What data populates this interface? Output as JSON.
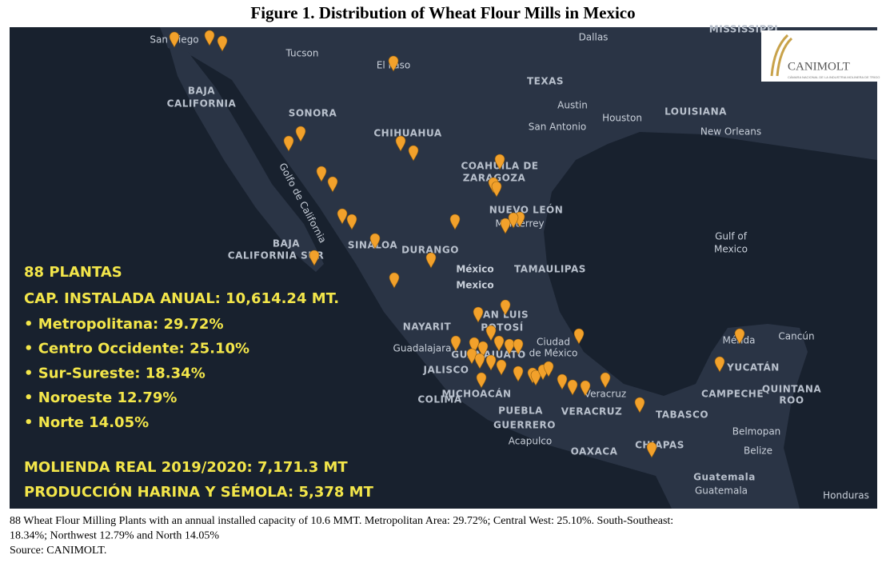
{
  "title": "Figure 1. Distribution of Wheat Flour Mills in Mexico",
  "logo": {
    "name": "CANIMOLT",
    "subtitle": "CÁMARA NACIONAL DE LA INDUSTRIA MOLINERA DE TRIGO"
  },
  "map": {
    "labels": [
      "San Diego",
      "Tucson",
      "El Paso",
      "Dallas",
      "MISSISSIPPI",
      "TEXAS",
      "Austin",
      "Houston",
      "LOUISIANA",
      "San Antonio",
      "New Orleans",
      "BAJA",
      "CALIFORNIA",
      "SONORA",
      "CHIHUAHUA",
      "COAHUILA DE",
      "ZARAGOZA",
      "NUEVO LEÓN",
      "Monterrey",
      "Gulf of",
      "Mexico",
      "BAJA",
      "CALIFORNIA SUR",
      "SINALOA",
      "DURANGO",
      "México",
      "Mexico",
      "TAMAULIPAS",
      "SAN LUIS",
      "POTOSÍ",
      "NAYARIT",
      "Guadalajara",
      "GUANAJUATO",
      "JALISCO",
      "Ciudad",
      "de México",
      "COLIMA",
      "MICHOACÁN",
      "PUEBLA",
      "VERACRUZ",
      "Veracruz",
      "TABASCO",
      "CAMPECHE",
      "QUINTANA",
      "ROO",
      "YUCATÁN",
      "Mérida",
      "Cancún",
      "GUERRERO",
      "Acapulco",
      "OAXACA",
      "CHIAPAS",
      "Belmopan",
      "Belize",
      "Guatemala",
      "Guatemala",
      "Honduras"
    ],
    "gulf_label": "Golfo de California"
  },
  "overlay": {
    "plants": "88 PLANTAS",
    "capacity": "CAP. INSTALADA ANUAL:  10,614.24 MT.",
    "regions": [
      "• Metropolitana: 29.72%",
      "• Centro Occidente: 25.10%",
      "• Sur-Sureste: 18.34%",
      "• Noroeste 12.79%",
      "• Norte 14.05%"
    ],
    "milling": "MOLIENDA REAL 2019/2020:  7,171.3 MT",
    "production": "PRODUCCIÓN HARINA Y SÉMOLA:  5,378 MT"
  },
  "caption": [
    "88 Wheat Flour Milling Plants with an annual installed capacity of 10.6 MMT. Metropolitan Area: 29.72%; Central West: 25.10%. South-Southeast:",
    "18.34%; Northwest 12.79% and North 14.05%",
    "Source: CANIMOLT."
  ]
}
